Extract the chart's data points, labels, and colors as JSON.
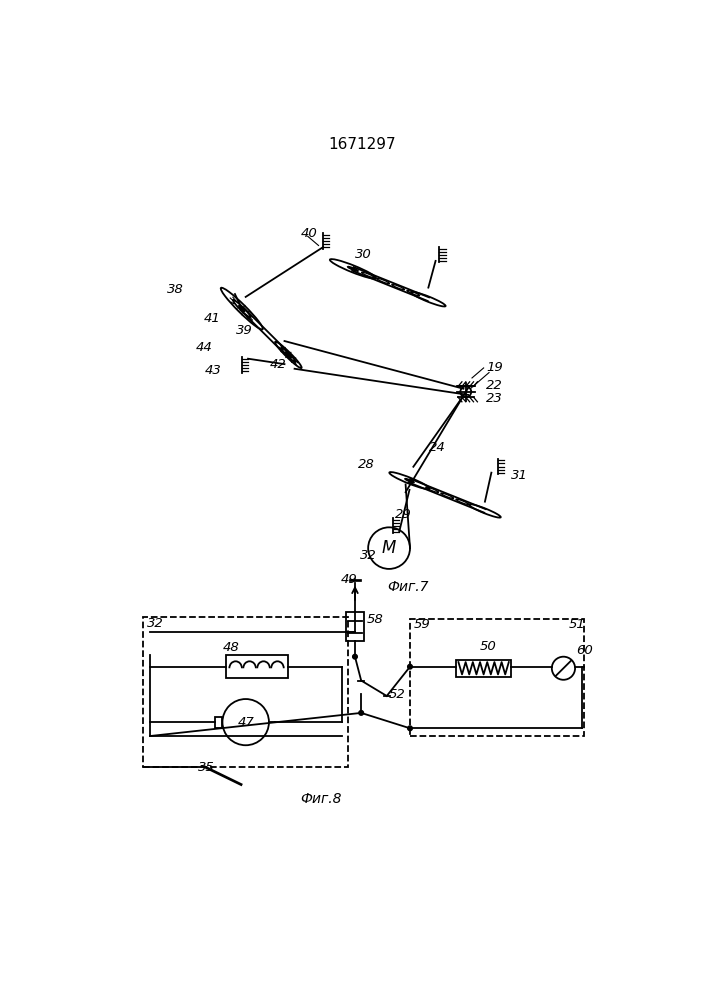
{
  "title": "1671297",
  "fig7_label": "Фиг.7",
  "fig8_label": "Фиг.8",
  "bg_color": "#ffffff",
  "lc": "#000000"
}
